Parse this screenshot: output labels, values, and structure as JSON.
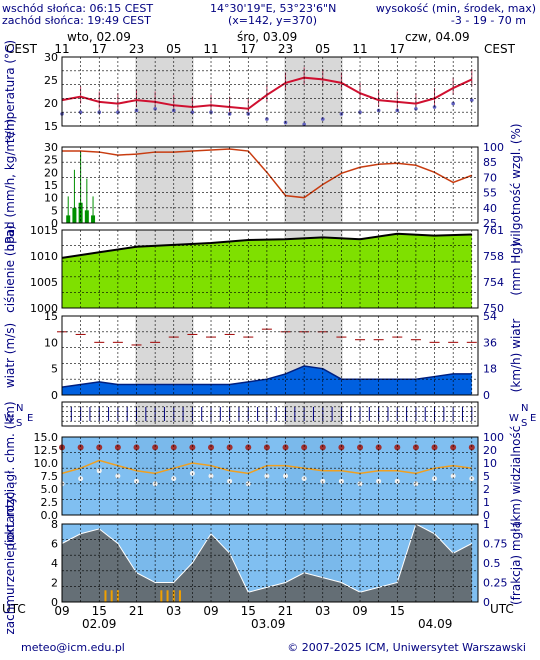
{
  "header": {
    "sunrise": "wschód słońca: 06:15 CEST",
    "sunset": "zachód słońca: 19:49 CEST",
    "coords": "14°30'19\"E, 53°23'6\"N",
    "grid": "(x=142, y=370)",
    "altitude_label": "wysokość (min, środek, max)",
    "altitude_values": "-3 - 19 - 70 m"
  },
  "timezone": "CEST",
  "utc": "UTC",
  "days": [
    "wto, 02.09",
    "śro, 03.09",
    "czw, 04.09"
  ],
  "day_short": [
    "02.09",
    "03.09",
    "04.09"
  ],
  "hours_top": [
    "11",
    "17",
    "23",
    "05",
    "11",
    "17",
    "23",
    "05",
    "11",
    "17"
  ],
  "hours_bottom": [
    "09",
    "15",
    "21",
    "03",
    "09",
    "15",
    "21",
    "03",
    "09",
    "15"
  ],
  "footer": {
    "email": "meteo@icm.edu.pl",
    "copyright": "© 2007-2025 ICM, Uniwersytet Warszawski"
  },
  "colors": {
    "night": "#d8d8d8",
    "temperature": "#d01030",
    "humidity": "#c83c10",
    "precip": "#009000",
    "pressure_fill": "#7fe000",
    "wind_fill": "#0060e0",
    "visibility_bg": "#6ab4ee",
    "clouds_bg": "#6ab4ee"
  },
  "chart_data": [
    {
      "type": "line",
      "panel": "temperature",
      "ylabel": "temperatura (°C)",
      "ylim": [
        10,
        30
      ],
      "ticks": [
        "30",
        "25",
        "20",
        "15"
      ],
      "x": [
        7,
        10,
        13,
        16,
        19,
        22,
        25,
        28,
        31,
        34,
        37,
        40,
        43,
        46,
        49,
        52,
        55,
        58,
        61,
        64,
        67,
        70,
        73
      ],
      "series": [
        {
          "values": [
            17.5,
            18.5,
            17,
            16.5,
            17.5,
            17,
            16,
            15.5,
            16,
            15.5,
            15,
            19,
            22.5,
            24,
            23.5,
            22.5,
            19.5,
            17.5,
            17,
            16.5,
            18,
            21,
            23.5
          ]
        }
      ],
      "dew_point": [
        13.5,
        14,
        14,
        14,
        14.5,
        15,
        14.5,
        14,
        14,
        13.5,
        13.5,
        12,
        11,
        10.5,
        12,
        13.5,
        14,
        14.5,
        14.5,
        15,
        15.5,
        16.5,
        17.5
      ]
    },
    {
      "type": "bar",
      "panel": "precipitation_humidity",
      "ylabel": "opad (mm/h, kg/m²/h)",
      "ylabel_right": "wilgotność wzgl. (%)",
      "ylim": [
        0,
        30
      ],
      "ticks": [
        "30",
        "25",
        "20",
        "15",
        "10",
        "5",
        "0"
      ],
      "ticks_right": [
        "100",
        "85",
        "70",
        "55",
        "40",
        "25"
      ],
      "humidity_x": [
        7,
        10,
        13,
        16,
        19,
        22,
        25,
        28,
        31,
        34,
        37,
        40,
        43,
        46,
        49,
        52,
        55,
        58,
        61,
        64,
        67,
        70,
        73
      ],
      "humidity": [
        96,
        96,
        95,
        92,
        93,
        95,
        95,
        96,
        97,
        98,
        96,
        75,
        52,
        50,
        63,
        74,
        80,
        83,
        84,
        82,
        75,
        65,
        72
      ]
    },
    {
      "type": "area",
      "panel": "pressure",
      "ylabel": "ciśnienie (hPa)",
      "ylabel_right": "(mm Hg)",
      "ylim": [
        995,
        1016
      ],
      "ticks": [
        "1015",
        "1010",
        "1005",
        "1000"
      ],
      "ticks_right": [
        "761",
        "758",
        "754",
        "750"
      ],
      "x": [
        7,
        13,
        19,
        25,
        31,
        37,
        43,
        49,
        55,
        61,
        67,
        73
      ],
      "values": [
        1008.5,
        1010,
        1011.5,
        1012,
        1012.5,
        1013.3,
        1013.5,
        1014,
        1013.5,
        1015,
        1014.5,
        1014.8
      ]
    },
    {
      "type": "area",
      "panel": "wind",
      "ylabel": "wiatr (m/s)",
      "ylabel_right": "(km/h) wiatr",
      "ylim": [
        0,
        15
      ],
      "ticks": [
        "15",
        "10",
        "5",
        "0"
      ],
      "ticks_right": [
        "54",
        "36",
        "18",
        "0"
      ],
      "x": [
        7,
        10,
        13,
        16,
        19,
        22,
        25,
        28,
        31,
        34,
        37,
        40,
        43,
        46,
        49,
        52,
        55,
        58,
        61,
        64,
        67,
        70,
        73
      ],
      "speed": [
        1.5,
        2,
        2.5,
        2,
        2,
        2,
        2,
        2,
        2,
        2,
        2.5,
        3,
        4,
        5.5,
        5,
        3,
        3,
        3,
        3,
        3,
        3.5,
        4,
        4
      ],
      "gusts": [
        12,
        11.5,
        10,
        10,
        9.5,
        10,
        11,
        11.5,
        11,
        11.5,
        11,
        12.5,
        12,
        12,
        12,
        11,
        10.5,
        10.5,
        11,
        10.5,
        10,
        10,
        10
      ]
    },
    {
      "type": "scatter",
      "panel": "direction",
      "labels": [
        "W",
        "N",
        "S",
        "E"
      ]
    },
    {
      "type": "scatter",
      "panel": "visibility",
      "ylabel": "pion. rozciągł. chm. (km)",
      "ylabel_right": "(km) widzialność",
      "ylim": [
        0,
        15
      ],
      "ticks": [
        "15.0",
        "12.5",
        "10.0",
        "7.5",
        "5.0",
        "2.5",
        "0.0"
      ],
      "ticks_right": [
        "100",
        "20",
        "10",
        "5",
        "2",
        "1",
        "0"
      ]
    },
    {
      "type": "area",
      "panel": "clouds",
      "ylabel": "zachmurzenie (oktanty)",
      "ylabel_right": "(frakcja) mgła",
      "ylim": [
        0,
        8
      ],
      "ticks": [
        "8",
        "6",
        "4",
        "2",
        "0"
      ],
      "ticks_right": [
        "1",
        "0.75",
        "0.5",
        "0.25",
        "0"
      ]
    }
  ]
}
